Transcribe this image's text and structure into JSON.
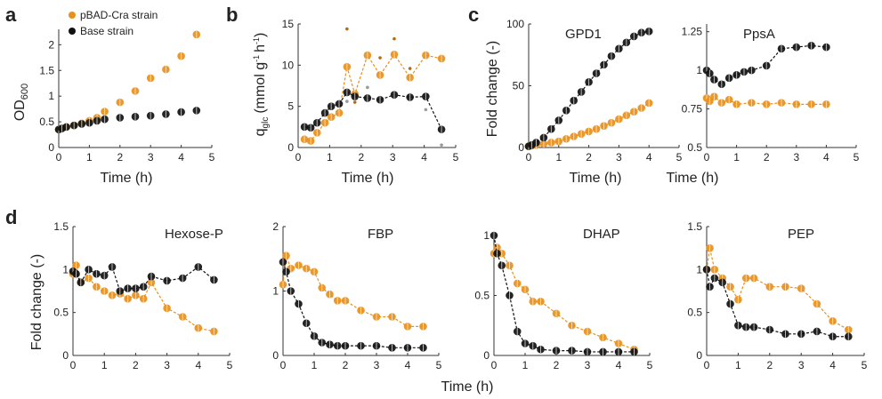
{
  "figure": {
    "letters": [
      "a",
      "b",
      "c",
      "d"
    ],
    "x_label": "Time (h)",
    "a_ylabel_main": "OD",
    "a_ylabel_sub": "600",
    "b_ylabel_q": "q",
    "b_ylabel_sub": "glc",
    "b_ylabel_rest": "(mmol g",
    "b_ylabel_rest2": "h",
    "b_ylabel_sup": "-1",
    "fold_label": "Fold change (-)",
    "legend": [
      "pBAD-Cra strain",
      "Base strain"
    ]
  },
  "colors": {
    "cra": "#E8901C",
    "base": "#111111",
    "rep_cra": "#B36A12",
    "rep_base": "#9A9A9A"
  },
  "chart_data": [
    {
      "id": "a",
      "type": "scatter",
      "title": "",
      "xlabel": "Time (h)",
      "ylabel": "OD600",
      "xlim": [
        0,
        5
      ],
      "ylim": [
        0,
        2.3
      ],
      "xticks": [
        0,
        1,
        2,
        3,
        4,
        5
      ],
      "yticks": [
        0,
        0.5,
        1,
        1.5,
        2
      ],
      "yticklabels": [
        "0",
        "0.5",
        "1",
        "1.5",
        "2"
      ],
      "legend": "top-left",
      "grid": false,
      "series": [
        {
          "name": "pBAD-Cra strain",
          "color": "cra",
          "line": false,
          "x": [
            0,
            0.1,
            0.25,
            0.5,
            0.75,
            1.0,
            1.25,
            1.5,
            2.0,
            2.5,
            3.0,
            3.5,
            4.0,
            4.5
          ],
          "y": [
            0.35,
            0.37,
            0.4,
            0.43,
            0.47,
            0.52,
            0.58,
            0.7,
            0.88,
            1.1,
            1.35,
            1.52,
            1.78,
            2.2
          ]
        },
        {
          "name": "Base strain",
          "color": "base",
          "line": false,
          "x": [
            0,
            0.1,
            0.25,
            0.5,
            0.75,
            1.0,
            1.25,
            1.5,
            2.0,
            2.5,
            3.0,
            3.5,
            4.0,
            4.5
          ],
          "y": [
            0.35,
            0.37,
            0.4,
            0.43,
            0.46,
            0.48,
            0.52,
            0.55,
            0.58,
            0.6,
            0.62,
            0.65,
            0.69,
            0.72
          ]
        }
      ]
    },
    {
      "id": "b",
      "type": "line",
      "title": "",
      "xlabel": "Time (h)",
      "ylabel": "qglc (mmol g-1 h-1)",
      "xlim": [
        0,
        5
      ],
      "ylim": [
        0,
        15
      ],
      "xticks": [
        0,
        1,
        2,
        3,
        4,
        5
      ],
      "yticks": [
        0,
        5,
        10,
        15
      ],
      "yticklabels": [
        "0",
        "5",
        "10",
        "15"
      ],
      "grid": false,
      "series": [
        {
          "name": "pBAD-Cra strain",
          "color": "cra",
          "line": true,
          "x": [
            0.2,
            0.4,
            0.6,
            0.85,
            1.05,
            1.3,
            1.55,
            1.8,
            2.2,
            2.6,
            3.05,
            3.55,
            4.05,
            4.55
          ],
          "y": [
            1.0,
            0.8,
            1.8,
            3.0,
            3.7,
            4.2,
            9.8,
            6.5,
            11.2,
            8.8,
            11.3,
            8.5,
            11.2,
            10.8
          ]
        },
        {
          "name": "Base strain",
          "color": "base",
          "line": true,
          "x": [
            0.2,
            0.4,
            0.6,
            0.85,
            1.05,
            1.3,
            1.55,
            1.8,
            2.2,
            2.6,
            3.05,
            3.55,
            4.05,
            4.55
          ],
          "y": [
            2.5,
            2.4,
            3.0,
            4.2,
            5.0,
            5.3,
            6.7,
            6.2,
            6.0,
            5.8,
            6.4,
            6.1,
            6.2,
            2.2
          ]
        }
      ],
      "rep_cra": [
        [
          1.55,
          14.4
        ],
        [
          2.6,
          10.9
        ],
        [
          3.05,
          13.2
        ],
        [
          3.55,
          9.6
        ],
        [
          1.8,
          5.5
        ]
      ],
      "rep_base": [
        [
          4.55,
          0.3
        ],
        [
          4.05,
          4.6
        ],
        [
          1.55,
          5.6
        ],
        [
          2.2,
          7.3
        ]
      ]
    },
    {
      "id": "c1",
      "type": "line",
      "title": "GPD1",
      "xlabel": "Time (h)",
      "ylabel": "Fold change (-)",
      "xlim": [
        0,
        5
      ],
      "ylim": [
        0,
        100
      ],
      "xticks": [
        0,
        1,
        2,
        3,
        4,
        5
      ],
      "yticks": [
        0,
        50,
        100
      ],
      "yticklabels": [
        "0",
        "50",
        "100"
      ],
      "grid": false,
      "series": [
        {
          "name": "pBAD-Cra strain",
          "color": "cra",
          "line": true,
          "x": [
            0,
            0.1,
            0.25,
            0.5,
            0.75,
            1.0,
            1.25,
            1.5,
            1.75,
            2.0,
            2.25,
            2.5,
            2.75,
            3.0,
            3.25,
            3.5,
            3.75,
            4.0
          ],
          "y": [
            1,
            1.5,
            2,
            3,
            4,
            5,
            7,
            9,
            11,
            13,
            15,
            17.5,
            20,
            23,
            26,
            29,
            32,
            36
          ]
        },
        {
          "name": "Base strain",
          "color": "base",
          "line": true,
          "x": [
            0,
            0.1,
            0.25,
            0.5,
            0.75,
            1.0,
            1.25,
            1.5,
            1.75,
            2.0,
            2.25,
            2.5,
            2.75,
            3.0,
            3.25,
            3.5,
            3.75,
            4.0
          ],
          "y": [
            1,
            2,
            4,
            8,
            15,
            22,
            30,
            38,
            45,
            53,
            60,
            67,
            74,
            80,
            85,
            90,
            93,
            94
          ]
        }
      ]
    },
    {
      "id": "c2",
      "type": "line",
      "title": "PpsA",
      "xlabel": "Time (h)",
      "ylabel": "",
      "xlim": [
        0,
        5
      ],
      "ylim": [
        0.5,
        1.3
      ],
      "xticks": [
        0,
        1,
        2,
        3,
        4,
        5
      ],
      "yticks": [
        0.5,
        0.75,
        1,
        1.25
      ],
      "yticklabels": [
        "0.5",
        "0.75",
        "1",
        "1.25"
      ],
      "grid": false,
      "series": [
        {
          "name": "pBAD-Cra strain",
          "color": "cra",
          "line": true,
          "x": [
            0,
            0.1,
            0.25,
            0.5,
            0.75,
            1.0,
            1.5,
            2.0,
            2.5,
            3.0,
            3.5,
            4.0
          ],
          "y": [
            0.82,
            0.8,
            0.83,
            0.79,
            0.81,
            0.78,
            0.79,
            0.78,
            0.79,
            0.78,
            0.78,
            0.78
          ]
        },
        {
          "name": "Base strain",
          "color": "base",
          "line": true,
          "x": [
            0,
            0.1,
            0.25,
            0.5,
            0.75,
            1.0,
            1.25,
            1.5,
            2.0,
            2.5,
            3.0,
            3.5,
            4.0
          ],
          "y": [
            1.0,
            0.98,
            0.94,
            0.91,
            0.95,
            0.97,
            0.99,
            1.0,
            1.03,
            1.14,
            1.15,
            1.16,
            1.15
          ]
        }
      ]
    },
    {
      "id": "d1",
      "type": "line",
      "title": "Hexose-P",
      "xlabel": "",
      "ylabel": "Fold change (-)",
      "xlim": [
        0,
        5
      ],
      "ylim": [
        0,
        1.5
      ],
      "xticks": [
        0,
        1,
        2,
        3,
        4,
        5
      ],
      "yticks": [
        0,
        0.5,
        1,
        1.5
      ],
      "yticklabels": [
        "0",
        "0.5",
        "1",
        "1.5"
      ],
      "grid": false,
      "series": [
        {
          "name": "pBAD-Cra strain",
          "color": "cra",
          "line": true,
          "x": [
            0,
            0.1,
            0.25,
            0.5,
            0.75,
            1.0,
            1.25,
            1.5,
            1.75,
            2.0,
            2.25,
            2.5,
            3.0,
            3.5,
            4.0,
            4.5
          ],
          "y": [
            0.95,
            1.05,
            0.85,
            0.9,
            0.8,
            0.75,
            0.7,
            0.72,
            0.66,
            0.7,
            0.66,
            0.85,
            0.55,
            0.45,
            0.32,
            0.28
          ]
        },
        {
          "name": "Base strain",
          "color": "base",
          "line": true,
          "x": [
            0,
            0.1,
            0.25,
            0.5,
            0.75,
            1.0,
            1.25,
            1.5,
            1.75,
            2.0,
            2.25,
            2.5,
            3.0,
            3.5,
            4.0,
            4.5
          ],
          "y": [
            0.98,
            0.95,
            0.85,
            1.0,
            0.95,
            0.93,
            1.03,
            0.75,
            0.78,
            0.78,
            0.8,
            0.92,
            0.87,
            0.9,
            1.03,
            0.88
          ]
        }
      ]
    },
    {
      "id": "d2",
      "type": "line",
      "title": "FBP",
      "xlabel": "",
      "ylabel": "",
      "xlim": [
        0,
        5
      ],
      "ylim": [
        0,
        2
      ],
      "xticks": [
        0,
        1,
        2,
        3,
        4,
        5
      ],
      "yticks": [
        0,
        1,
        2
      ],
      "yticklabels": [
        "0",
        "1",
        "2"
      ],
      "grid": false,
      "series": [
        {
          "name": "pBAD-Cra strain",
          "color": "cra",
          "line": true,
          "x": [
            0,
            0.1,
            0.25,
            0.5,
            0.75,
            1.0,
            1.25,
            1.5,
            1.75,
            2.0,
            2.5,
            3.0,
            3.5,
            4.0,
            4.5
          ],
          "y": [
            1.1,
            1.55,
            1.35,
            1.4,
            1.35,
            1.3,
            1.05,
            0.95,
            0.85,
            0.85,
            0.7,
            0.6,
            0.6,
            0.45,
            0.45
          ]
        },
        {
          "name": "Base strain",
          "color": "base",
          "line": true,
          "x": [
            0,
            0.1,
            0.25,
            0.5,
            0.75,
            1.0,
            1.25,
            1.5,
            1.75,
            2.0,
            2.5,
            3.0,
            3.5,
            4.0,
            4.5
          ],
          "y": [
            1.45,
            1.3,
            1.0,
            0.8,
            0.5,
            0.3,
            0.2,
            0.17,
            0.15,
            0.15,
            0.15,
            0.15,
            0.12,
            0.12,
            0.12
          ]
        }
      ]
    },
    {
      "id": "d3",
      "type": "line",
      "title": "DHAP",
      "xlabel": "",
      "ylabel": "",
      "xlim": [
        0,
        5
      ],
      "ylim": [
        0,
        1
      ],
      "xticks": [
        0,
        1,
        2,
        3,
        4,
        5
      ],
      "yticks": [
        0,
        0.5,
        1
      ],
      "yticklabels": [
        "0",
        "0.5",
        "1"
      ],
      "grid": false,
      "series": [
        {
          "name": "pBAD-Cra strain",
          "color": "cra",
          "line": true,
          "x": [
            0,
            0.1,
            0.25,
            0.5,
            0.75,
            1.0,
            1.25,
            1.5,
            2.0,
            2.5,
            3.0,
            3.5,
            4.0,
            4.5
          ],
          "y": [
            0.85,
            0.9,
            0.85,
            0.75,
            0.6,
            0.55,
            0.45,
            0.45,
            0.35,
            0.25,
            0.2,
            0.15,
            0.1,
            0.05
          ]
        },
        {
          "name": "Base strain",
          "color": "base",
          "line": true,
          "x": [
            0,
            0.1,
            0.25,
            0.5,
            0.75,
            1.0,
            1.25,
            1.5,
            2.0,
            2.5,
            3.0,
            3.5,
            4.0,
            4.5
          ],
          "y": [
            1.0,
            0.85,
            0.75,
            0.5,
            0.2,
            0.1,
            0.08,
            0.05,
            0.04,
            0.04,
            0.03,
            0.03,
            0.03,
            0.03
          ]
        }
      ]
    },
    {
      "id": "d4",
      "type": "line",
      "title": "PEP",
      "xlabel": "",
      "ylabel": "",
      "xlim": [
        0,
        5
      ],
      "ylim": [
        0,
        1.5
      ],
      "xticks": [
        0,
        1,
        2,
        3,
        4,
        5
      ],
      "yticks": [
        0,
        0.5,
        1,
        1.5
      ],
      "yticklabels": [
        "0",
        "0.5",
        "1",
        "1.5"
      ],
      "grid": false,
      "series": [
        {
          "name": "pBAD-Cra strain",
          "color": "cra",
          "line": true,
          "x": [
            0,
            0.1,
            0.25,
            0.5,
            0.75,
            1.0,
            1.25,
            1.5,
            2.0,
            2.5,
            3.0,
            3.5,
            4.0,
            4.5
          ],
          "y": [
            1.0,
            1.25,
            1.0,
            0.9,
            0.8,
            0.65,
            0.9,
            0.9,
            0.8,
            0.8,
            0.78,
            0.6,
            0.4,
            0.3
          ]
        },
        {
          "name": "Base strain",
          "color": "base",
          "line": true,
          "x": [
            0,
            0.1,
            0.25,
            0.5,
            0.75,
            1.0,
            1.25,
            1.5,
            2.0,
            2.5,
            3.0,
            3.5,
            4.0,
            4.5
          ],
          "y": [
            1.0,
            0.8,
            0.9,
            0.85,
            0.6,
            0.35,
            0.33,
            0.33,
            0.3,
            0.25,
            0.25,
            0.28,
            0.22,
            0.22
          ]
        }
      ]
    }
  ]
}
